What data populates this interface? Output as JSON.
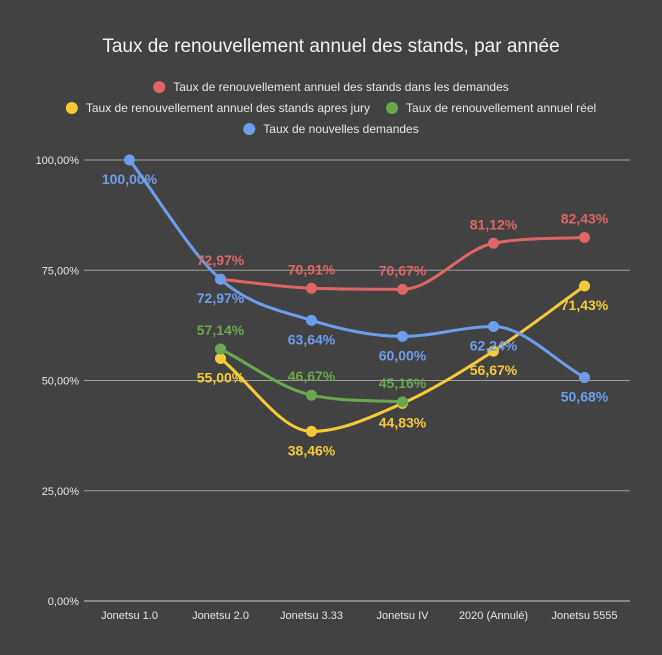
{
  "chart_data": {
    "type": "line",
    "title": "Taux de renouvellement annuel des stands, par année",
    "xlabel": "",
    "ylabel": "",
    "ylim": [
      0,
      100
    ],
    "yticks": [
      "0,00%",
      "25,00%",
      "50,00%",
      "75,00%",
      "100,00%"
    ],
    "ytick_values": [
      0,
      25,
      50,
      75,
      100
    ],
    "categories": [
      "Jonetsu 1.0",
      "Jonetsu 2.0",
      "Jonetsu 3.33",
      "Jonetsu IV",
      "2020 (Annulé)",
      "Jonetsu 5555"
    ],
    "grid": true,
    "legend_position": "top",
    "series": [
      {
        "name": "Taux de renouvellement annuel des stands dans les demandes",
        "color": "#e06666",
        "values": [
          null,
          72.97,
          70.91,
          70.67,
          81.12,
          82.43
        ],
        "labels": [
          "",
          "72,97%",
          "70,91%",
          "70,67%",
          "81,12%",
          "82,43%"
        ],
        "label_pos": [
          "",
          "above",
          "above",
          "above",
          "above",
          "above"
        ]
      },
      {
        "name": "Taux de renouvellement annuel des stands apres jury",
        "color": "#f6c937",
        "values": [
          null,
          55.0,
          38.46,
          44.83,
          56.67,
          71.43
        ],
        "labels": [
          "",
          "55,00%",
          "38,46%",
          "44,83%",
          "56,67%",
          "71,43%"
        ],
        "label_pos": [
          "",
          "below",
          "below",
          "below",
          "below",
          "below"
        ]
      },
      {
        "name": "Taux de renouvellement annuel réel",
        "color": "#6aa84f",
        "values": [
          null,
          57.14,
          46.67,
          45.16,
          null,
          null
        ],
        "labels": [
          "",
          "57,14%",
          "46,67%",
          "45,16%",
          "",
          ""
        ],
        "label_pos": [
          "",
          "above",
          "above",
          "above",
          "",
          ""
        ]
      },
      {
        "name": "Taux de nouvelles demandes",
        "color": "#6d9eeb",
        "values": [
          100.0,
          72.97,
          63.64,
          60.0,
          62.24,
          50.68
        ],
        "labels": [
          "100,00%",
          "72,97%",
          "63,64%",
          "60,00%",
          "62,24%",
          "50,68%"
        ],
        "label_pos": [
          "below",
          "below",
          "below",
          "below",
          "below",
          "below"
        ]
      }
    ]
  }
}
